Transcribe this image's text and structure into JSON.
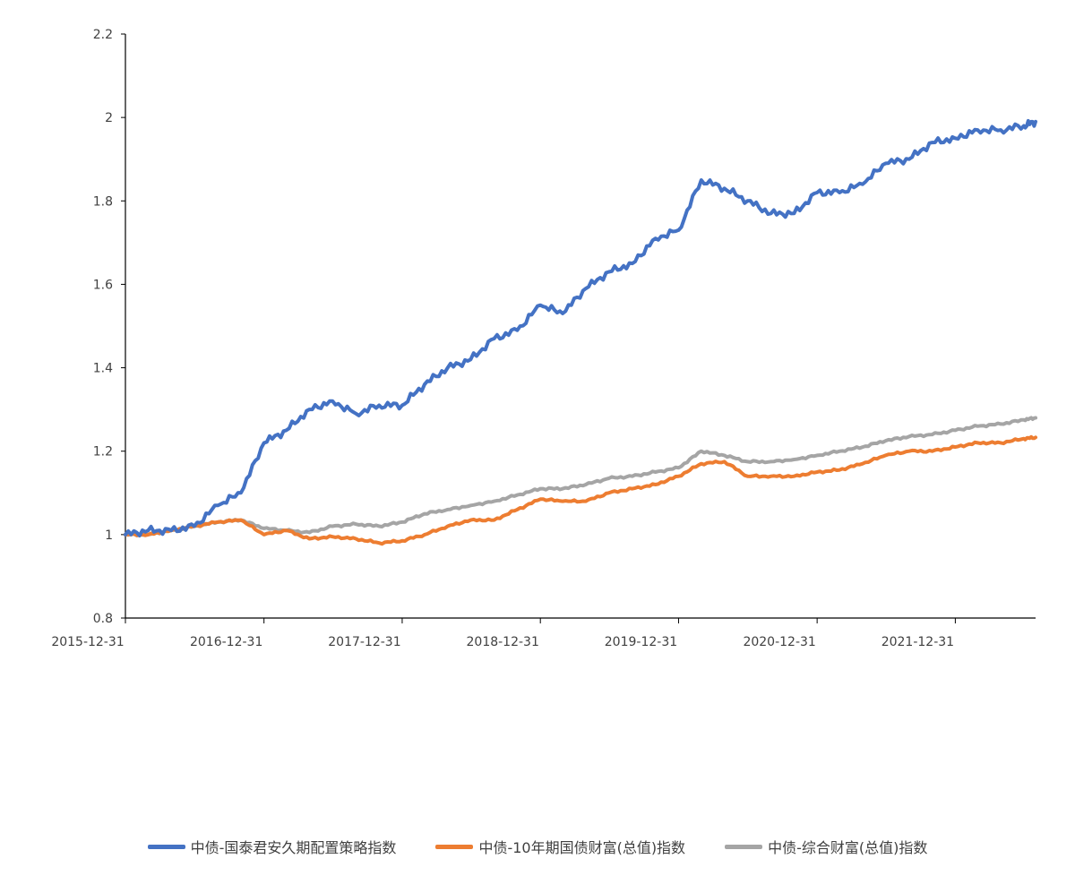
{
  "chart_data": {
    "type": "line",
    "title": "",
    "xlabel": "",
    "ylabel": "",
    "ylim": [
      0.8,
      2.2
    ],
    "yticks": [
      "0.8",
      "1",
      "1.2",
      "1.4",
      "1.6",
      "1.8",
      "2",
      "2.2"
    ],
    "xticks": [
      "2015-12-31",
      "2016-12-31",
      "2017-12-31",
      "2018-12-31",
      "2019-12-31",
      "2020-12-31",
      "2021-12-31"
    ],
    "xlim": [
      "2015-12-31",
      "2022-07-31"
    ],
    "grid": false,
    "legend_position": "bottom",
    "x": [
      "2015-12-31",
      "2016-02-29",
      "2016-04-30",
      "2016-06-30",
      "2016-08-31",
      "2016-10-31",
      "2016-12-31",
      "2017-02-28",
      "2017-04-30",
      "2017-06-30",
      "2017-08-31",
      "2017-10-31",
      "2017-12-31",
      "2018-02-28",
      "2018-04-30",
      "2018-06-30",
      "2018-08-31",
      "2018-10-31",
      "2018-12-31",
      "2019-02-28",
      "2019-04-30",
      "2019-06-30",
      "2019-08-31",
      "2019-10-31",
      "2019-12-31",
      "2020-02-29",
      "2020-04-30",
      "2020-06-30",
      "2020-08-31",
      "2020-10-31",
      "2020-12-31",
      "2021-02-28",
      "2021-04-30",
      "2021-06-30",
      "2021-08-31",
      "2021-10-31",
      "2021-12-31",
      "2022-02-28",
      "2022-04-30",
      "2022-06-30",
      "2022-07-31"
    ],
    "series": [
      {
        "name": "中债-国泰君安久期配置策略指数",
        "color": "#4472C4",
        "values": [
          1.0,
          1.01,
          1.01,
          1.02,
          1.07,
          1.1,
          1.22,
          1.25,
          1.3,
          1.32,
          1.29,
          1.31,
          1.31,
          1.36,
          1.4,
          1.42,
          1.47,
          1.49,
          1.55,
          1.53,
          1.59,
          1.63,
          1.65,
          1.71,
          1.73,
          1.85,
          1.83,
          1.8,
          1.77,
          1.77,
          1.82,
          1.82,
          1.84,
          1.89,
          1.9,
          1.94,
          1.95,
          1.97,
          1.97,
          1.98,
          1.99
        ]
      },
      {
        "name": "中债-10年期国债财富(总值)指数",
        "color": "#ED7D31",
        "values": [
          1.0,
          1.0,
          1.01,
          1.02,
          1.03,
          1.035,
          1.0,
          1.01,
          0.99,
          0.995,
          0.99,
          0.98,
          0.985,
          1.0,
          1.02,
          1.035,
          1.035,
          1.06,
          1.085,
          1.08,
          1.08,
          1.1,
          1.11,
          1.12,
          1.14,
          1.17,
          1.175,
          1.14,
          1.14,
          1.14,
          1.15,
          1.155,
          1.17,
          1.19,
          1.2,
          1.2,
          1.21,
          1.22,
          1.22,
          1.23,
          1.233
        ]
      },
      {
        "name": "中债-综合财富(总值)指数",
        "color": "#A5A5A5",
        "values": [
          1.0,
          1.0,
          1.01,
          1.02,
          1.03,
          1.035,
          1.015,
          1.01,
          1.005,
          1.02,
          1.025,
          1.02,
          1.03,
          1.05,
          1.06,
          1.07,
          1.08,
          1.095,
          1.11,
          1.11,
          1.12,
          1.135,
          1.14,
          1.15,
          1.16,
          1.2,
          1.19,
          1.175,
          1.175,
          1.18,
          1.19,
          1.2,
          1.21,
          1.225,
          1.235,
          1.24,
          1.25,
          1.26,
          1.265,
          1.275,
          1.28
        ]
      }
    ]
  }
}
